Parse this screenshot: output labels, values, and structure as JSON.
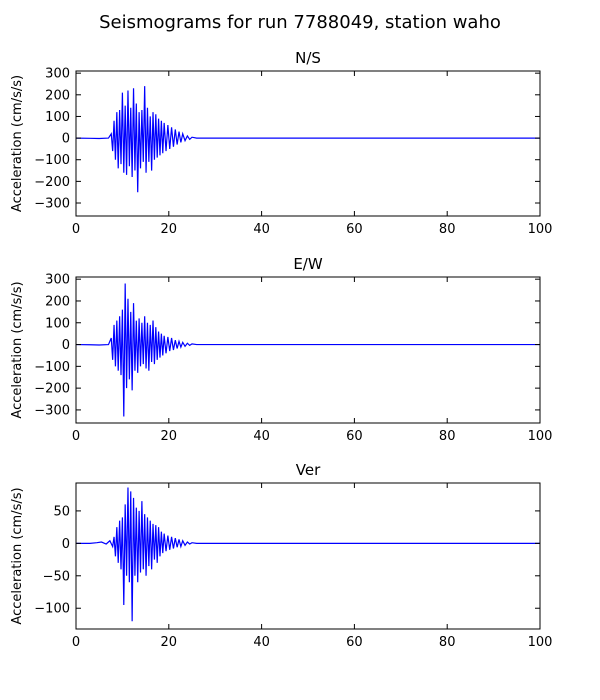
{
  "figure_title": "Seismograms for run 7788049, station waho",
  "chart_data": [
    {
      "type": "line",
      "title": "N/S",
      "xlabel": "",
      "ylabel": "Acceleration (cm/s/s)",
      "xlim": [
        0,
        100
      ],
      "ylim": [
        -360,
        310
      ],
      "xticks": [
        0,
        20,
        40,
        60,
        80,
        100
      ],
      "yticks": [
        -300,
        -200,
        -100,
        0,
        100,
        200,
        300
      ],
      "grid": false,
      "legend": false,
      "line_color": "#0000ff",
      "series": [
        {
          "x": [
            0,
            3,
            5,
            7,
            7.6,
            7.9,
            8.2,
            8.5,
            8.8,
            9.1,
            9.4,
            9.7,
            10.0,
            10.3,
            10.6,
            10.9,
            11.2,
            11.5,
            11.8,
            12.1,
            12.4,
            12.7,
            13.0,
            13.3,
            13.6,
            13.9,
            14.2,
            14.5,
            14.8,
            15.1,
            15.4,
            15.7,
            16.0,
            16.3,
            16.6,
            16.9,
            17.2,
            17.5,
            17.8,
            18.1,
            18.4,
            18.7,
            19.0,
            19.4,
            19.8,
            20.2,
            20.6,
            21.0,
            21.4,
            21.8,
            22.2,
            22.6,
            23.0,
            23.5,
            24.0,
            24.5,
            25.0,
            26.0,
            28.0,
            40.0,
            60.0,
            80.0,
            100.0
          ],
          "y": [
            0,
            -1,
            -2,
            0,
            20,
            -60,
            80,
            -100,
            120,
            -140,
            130,
            -120,
            210,
            -160,
            150,
            -170,
            220,
            -130,
            140,
            -180,
            230,
            -150,
            160,
            -250,
            120,
            -140,
            130,
            -110,
            240,
            -160,
            140,
            -110,
            100,
            -150,
            120,
            -100,
            110,
            -90,
            90,
            -80,
            80,
            -70,
            70,
            -60,
            60,
            -50,
            50,
            -40,
            40,
            -30,
            30,
            -20,
            20,
            -12,
            10,
            -6,
            4,
            0,
            0,
            0,
            0,
            0,
            0
          ]
        }
      ]
    },
    {
      "type": "line",
      "title": "E/W",
      "xlabel": "",
      "ylabel": "Acceleration (cm/s/s)",
      "xlim": [
        0,
        100
      ],
      "ylim": [
        -360,
        310
      ],
      "xticks": [
        0,
        20,
        40,
        60,
        80,
        100
      ],
      "yticks": [
        -300,
        -200,
        -100,
        0,
        100,
        200,
        300
      ],
      "grid": false,
      "legend": false,
      "line_color": "#0000ff",
      "series": [
        {
          "x": [
            0,
            3,
            5,
            7,
            7.6,
            7.9,
            8.2,
            8.5,
            8.8,
            9.1,
            9.4,
            9.7,
            10.0,
            10.3,
            10.6,
            10.9,
            11.2,
            11.5,
            11.8,
            12.1,
            12.4,
            12.7,
            13.0,
            13.3,
            13.6,
            13.9,
            14.2,
            14.5,
            14.8,
            15.1,
            15.4,
            15.7,
            16.0,
            16.3,
            16.6,
            16.9,
            17.2,
            17.5,
            17.8,
            18.1,
            18.4,
            18.7,
            19.0,
            19.4,
            19.8,
            20.2,
            20.6,
            21.0,
            21.4,
            21.8,
            22.2,
            22.6,
            23.0,
            23.5,
            24.0,
            24.5,
            25.0,
            26.0,
            28.0,
            40.0,
            60.0,
            80.0,
            100.0
          ],
          "y": [
            0,
            -1,
            -2,
            0,
            30,
            -70,
            90,
            -100,
            110,
            -120,
            130,
            -140,
            160,
            -330,
            280,
            -200,
            210,
            -160,
            150,
            -210,
            190,
            -120,
            110,
            -130,
            120,
            -100,
            100,
            -90,
            130,
            -110,
            100,
            -120,
            90,
            -80,
            110,
            -90,
            80,
            -70,
            60,
            -60,
            50,
            -50,
            40,
            -40,
            35,
            -30,
            30,
            -25,
            20,
            -18,
            15,
            -12,
            10,
            -8,
            6,
            -4,
            3,
            0,
            0,
            0,
            0,
            0,
            0
          ]
        }
      ]
    },
    {
      "type": "line",
      "title": "Ver",
      "xlabel": "",
      "ylabel": "Acceleration (cm/s/s)",
      "xlim": [
        0,
        100
      ],
      "ylim": [
        -132,
        93
      ],
      "xticks": [
        0,
        20,
        40,
        60,
        80,
        100
      ],
      "yticks": [
        -100,
        -50,
        0,
        50
      ],
      "grid": false,
      "legend": false,
      "line_color": "#0000ff",
      "series": [
        {
          "x": [
            0,
            3,
            4.5,
            5.5,
            6.5,
            7.3,
            7.9,
            8.2,
            8.5,
            8.8,
            9.1,
            9.4,
            9.7,
            10.0,
            10.3,
            10.6,
            10.9,
            11.2,
            11.5,
            11.8,
            12.1,
            12.4,
            12.7,
            13.0,
            13.3,
            13.6,
            13.9,
            14.2,
            14.5,
            14.8,
            15.1,
            15.4,
            15.7,
            16.0,
            16.3,
            16.6,
            16.9,
            17.2,
            17.5,
            17.8,
            18.1,
            18.4,
            18.7,
            19.0,
            19.4,
            19.8,
            20.2,
            20.6,
            21.0,
            21.4,
            21.8,
            22.2,
            22.6,
            23.0,
            23.5,
            24.0,
            24.5,
            25.0,
            26.0,
            28.0,
            40.0,
            60.0,
            80.0,
            100.0
          ],
          "y": [
            0,
            0,
            1,
            2,
            -1,
            4,
            -5,
            10,
            -20,
            25,
            -30,
            35,
            -40,
            40,
            -95,
            60,
            -50,
            86,
            -60,
            80,
            -120,
            70,
            -50,
            55,
            -60,
            50,
            -45,
            65,
            -40,
            45,
            -50,
            40,
            -35,
            35,
            -40,
            30,
            -25,
            28,
            -30,
            25,
            -20,
            18,
            -15,
            15,
            -12,
            12,
            -10,
            10,
            -8,
            8,
            -6,
            6,
            -5,
            4,
            -3,
            2,
            -1,
            1,
            0,
            0,
            0,
            0,
            0,
            0
          ]
        }
      ]
    }
  ]
}
